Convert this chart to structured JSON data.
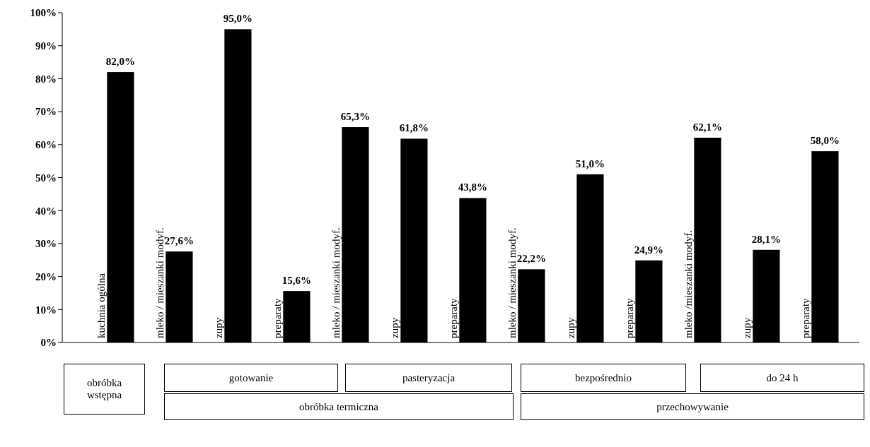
{
  "chart_data": {
    "type": "bar",
    "categories": [
      "kuchnia ogólna",
      "mleko / mieszanki modyf.",
      "zupy",
      "preparaty",
      "mleko / mieszanki modyf.",
      "zupy",
      "preparaty",
      "mleko / mieszanki modyf.",
      "zupy",
      "preparaty",
      "mleko /mieszanki modyf.",
      "zupy",
      "preparaty"
    ],
    "values": [
      82.0,
      27.6,
      95.0,
      15.6,
      65.3,
      61.8,
      43.8,
      22.2,
      51.0,
      24.9,
      62.1,
      28.1,
      58.0
    ],
    "value_labels": [
      "82,0%",
      "27,6%",
      "95,0%",
      "15,6%",
      "65,3%",
      "61,8%",
      "43,8%",
      "22,2%",
      "51,0%",
      "24,9%",
      "62,1%",
      "28,1%",
      "58,0%"
    ],
    "color": "#000000",
    "ylim": [
      0,
      100
    ],
    "yticks": [
      {
        "value": 0,
        "label": "0%"
      },
      {
        "value": 10,
        "label": "10%"
      },
      {
        "value": 20,
        "label": "20%"
      },
      {
        "value": 30,
        "label": "30%"
      },
      {
        "value": 40,
        "label": "40%"
      },
      {
        "value": 50,
        "label": "50%"
      },
      {
        "value": 60,
        "label": "60%"
      },
      {
        "value": 70,
        "label": "70%"
      },
      {
        "value": 80,
        "label": "80%"
      },
      {
        "value": 90,
        "label": "90%"
      },
      {
        "value": 100,
        "label": "100%"
      }
    ],
    "annotations": [
      "obróbka wstępna",
      "gotowanie",
      "pasteryzacja",
      "bezpośrednio",
      "do 24 h",
      "obróbka termiczna",
      "przechowywanie"
    ]
  }
}
